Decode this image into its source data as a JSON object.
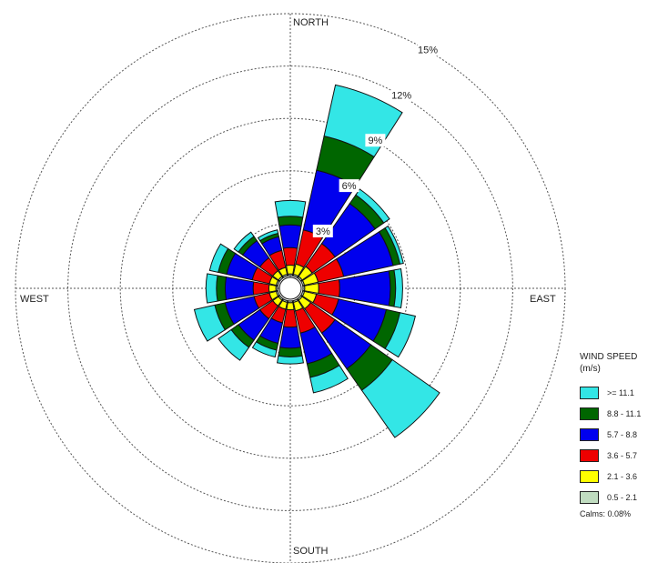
{
  "chart_data": {
    "type": "wind-rose",
    "directions": [
      "N",
      "NNE",
      "NE",
      "ENE",
      "E",
      "ESE",
      "SE",
      "SSE",
      "S",
      "SSW",
      "SW",
      "WSW",
      "W",
      "WNW",
      "NW",
      "NNW"
    ],
    "direction_labels": {
      "north": "NORTH",
      "east": "EAST",
      "south": "SOUTH",
      "west": "WEST"
    },
    "radial_axis": {
      "unit": "%",
      "labels": [
        "3%",
        "6%",
        "9%",
        "12%",
        "15%"
      ],
      "max": 15,
      "grid": "dashed"
    },
    "legend": {
      "title_line1": "WIND SPEED",
      "title_line2": "(m/s)",
      "placement": "bottom-right"
    },
    "calms": "Calms: 0.08%",
    "series": [
      {
        "name": ">= 11.1",
        "color": "#33e6e6",
        "values": [
          0.9,
          3.0,
          0.4,
          0.2,
          0.4,
          0.9,
          3.3,
          0.9,
          0.4,
          0.4,
          0.9,
          1.2,
          0.6,
          0.5,
          0.3,
          0.2
        ]
      },
      {
        "name": "8.8 - 11.1",
        "color": "#006600",
        "values": [
          0.5,
          2.0,
          0.6,
          0.4,
          0.3,
          0.8,
          1.5,
          0.8,
          0.5,
          0.4,
          0.5,
          0.6,
          0.5,
          0.5,
          0.3,
          0.2
        ]
      },
      {
        "name": "5.7 - 8.8",
        "color": "#0000ee",
        "values": [
          1.3,
          3.5,
          2.8,
          2.9,
          2.9,
          2.8,
          2.5,
          1.8,
          1.2,
          1.2,
          1.5,
          1.7,
          1.6,
          1.5,
          1.2,
          0.8
        ]
      },
      {
        "name": "3.6 - 5.7",
        "color": "#ee0000",
        "values": [
          1.0,
          2.0,
          1.6,
          1.5,
          1.2,
          1.3,
          1.7,
          1.3,
          1.0,
          0.8,
          0.9,
          0.9,
          0.9,
          1.0,
          0.9,
          1.0
        ]
      },
      {
        "name": "2.1 - 3.6",
        "color": "#ffff00",
        "values": [
          0.5,
          0.6,
          0.7,
          0.8,
          0.8,
          0.7,
          0.6,
          0.5,
          0.4,
          0.4,
          0.4,
          0.4,
          0.4,
          0.4,
          0.4,
          0.4
        ]
      },
      {
        "name": "0.5 - 2.1",
        "color": "#c0dcc0",
        "values": [
          0.1,
          0.1,
          0.1,
          0.1,
          0.1,
          0.1,
          0.1,
          0.1,
          0.1,
          0.1,
          0.1,
          0.1,
          0.1,
          0.1,
          0.1,
          0.1
        ]
      }
    ]
  }
}
